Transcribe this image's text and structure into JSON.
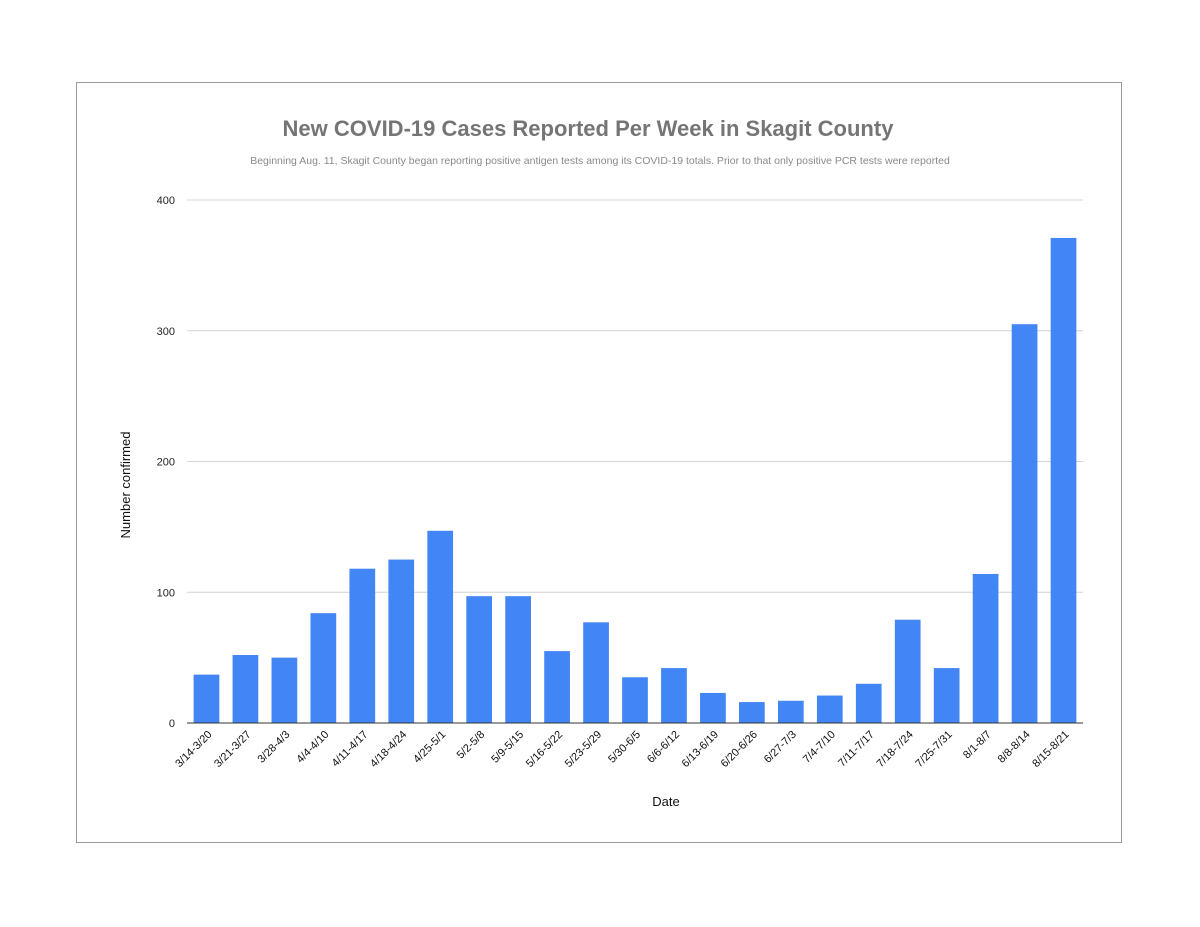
{
  "chart_data": {
    "type": "bar",
    "title": "New COVID-19 Cases Reported Per Week in Skagit County",
    "subtitle": "Beginning Aug. 11, Skagit County began reporting positive antigen tests among its COVID-19 totals. Prior to that only positive PCR tests were reported",
    "xlabel": "Date",
    "ylabel": "Number confirmed",
    "ylim": [
      0,
      400
    ],
    "yticks": [
      0,
      100,
      200,
      300,
      400
    ],
    "grid": true,
    "legend": "none",
    "bar_color": "#4285F4",
    "categories": [
      "3/14-3/20",
      "3/21-3/27",
      "3/28-4/3",
      "4/4-4/10",
      "4/11-4/17",
      "4/18-4/24",
      "4/25-5/1",
      "5/2-5/8",
      "5/9-5/15",
      "5/16-5/22",
      "5/23-5/29",
      "5/30-6/5",
      "6/6-6/12",
      "6/13-6/19",
      "6/20-6/26",
      "6/27-7/3",
      "7/4-7/10",
      "7/11-7/17",
      "7/18-7/24",
      "7/25-7/31",
      "8/1-8/7",
      "8/8-8/14",
      "8/15-8/21"
    ],
    "values": [
      37,
      52,
      50,
      84,
      118,
      125,
      147,
      97,
      97,
      55,
      77,
      35,
      42,
      23,
      16,
      17,
      21,
      30,
      79,
      42,
      114,
      305,
      371
    ]
  }
}
